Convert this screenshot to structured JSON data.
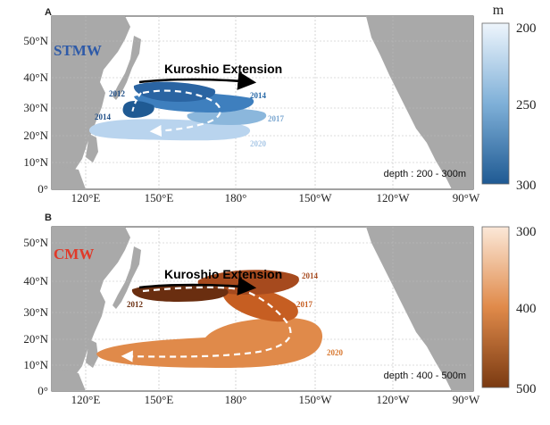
{
  "unit_label": "m",
  "lat_ticks": [
    "50°N",
    "40°N",
    "30°N",
    "20°N",
    "10°N",
    "0°"
  ],
  "lon_ticks": [
    "120°E",
    "150°E",
    "180°",
    "150°W",
    "120°W",
    "90°W"
  ],
  "colors": {
    "land": "#a9a9a9",
    "ocean": "#ffffff",
    "stmw_title": "#2e5aa8",
    "cmw_title": "#e03a2a",
    "path_dash": "#ffffff",
    "arrow": "#000000"
  },
  "panels": [
    {
      "letter": "A",
      "title": "STMW",
      "current_label": "Kuroshio Extension",
      "depth_label": "depth : 200 - 300m",
      "colorbar": {
        "ticks": [
          "200",
          "250",
          "300"
        ],
        "min": 200,
        "max": 300,
        "color_low": "#eef5fc",
        "color_high": "#1f5a93"
      },
      "year_labels": [
        {
          "text": "2012",
          "color": "#1f4e86"
        },
        {
          "text": "2014",
          "color": "#1f4e86"
        },
        {
          "text": "2014",
          "color": "#2a6aa8"
        },
        {
          "text": "2017",
          "color": "#7aa6d0"
        },
        {
          "text": "2020",
          "color": "#a8c7e6"
        }
      ]
    },
    {
      "letter": "B",
      "title": "CMW",
      "current_label": "Kuroshio Extension",
      "depth_label": "depth : 400 - 500m",
      "colorbar": {
        "ticks": [
          "300",
          "400",
          "500"
        ],
        "min": 300,
        "max": 500,
        "color_low": "#fbe8d8",
        "color_high": "#7a3a12"
      },
      "year_labels": [
        {
          "text": "2012",
          "color": "#6a2e10"
        },
        {
          "text": "2014",
          "color": "#a64a1e"
        },
        {
          "text": "2017",
          "color": "#c65e22"
        },
        {
          "text": "2020",
          "color": "#d8772e"
        }
      ]
    }
  ]
}
